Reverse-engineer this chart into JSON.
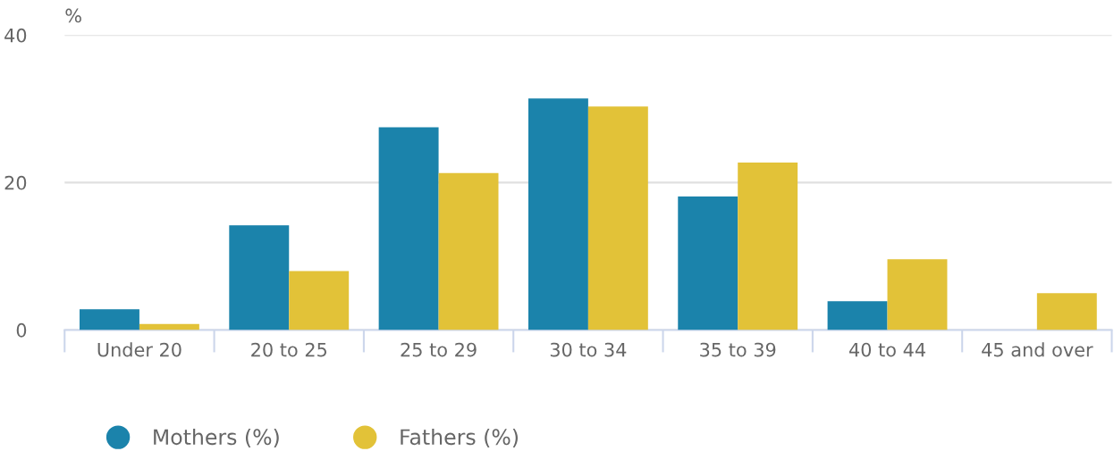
{
  "chart_data": {
    "type": "bar",
    "ylabel": "%",
    "categories": [
      "Under 20",
      "20 to 25",
      "25 to 29",
      "30 to 34",
      "35 to 39",
      "40 to 44",
      "45 and over"
    ],
    "series": [
      {
        "name": "Mothers (%)",
        "color": "#1b83ab",
        "values": [
          2.8,
          14.2,
          27.5,
          31.4,
          18.1,
          3.9,
          0
        ]
      },
      {
        "name": "Fathers (%)",
        "color": "#e2c238",
        "values": [
          0.8,
          8.0,
          21.3,
          30.3,
          22.7,
          9.6,
          5.0
        ]
      }
    ],
    "ylim": [
      0,
      40
    ],
    "yticks": [
      0,
      20,
      40
    ],
    "grid": "y",
    "legend": "bottom"
  }
}
